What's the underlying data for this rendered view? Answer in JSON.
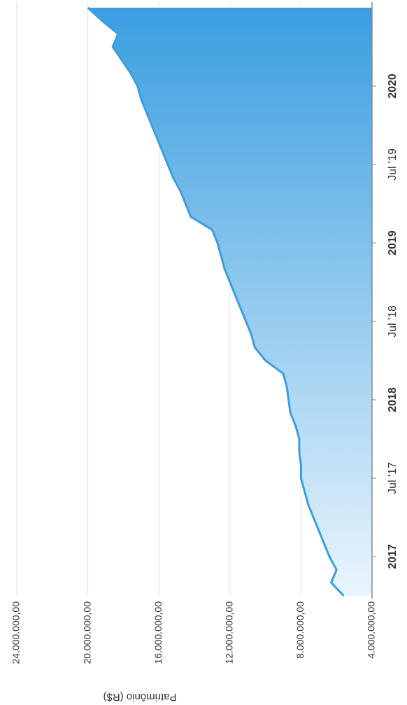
{
  "chart_data": {
    "type": "area",
    "y_label": "Patrimônio (R$)",
    "x": [
      "2016-10",
      "2016-11",
      "2016-12",
      "2017-01",
      "2017-02",
      "2017-03",
      "2017-04",
      "2017-05",
      "2017-06",
      "2017-07",
      "2017-08",
      "2017-09",
      "2017-10",
      "2017-11",
      "2017-12",
      "2018-01",
      "2018-02",
      "2018-03",
      "2018-04",
      "2018-05",
      "2018-06",
      "2018-07",
      "2018-08",
      "2018-09",
      "2018-10",
      "2018-11",
      "2018-12",
      "2019-01",
      "2019-02",
      "2019-03",
      "2019-04",
      "2019-05",
      "2019-06",
      "2019-07",
      "2019-08",
      "2019-09",
      "2019-10",
      "2019-11",
      "2019-12",
      "2020-01",
      "2020-02",
      "2020-03",
      "2020-04",
      "2020-05",
      "2020-06",
      "2020-07"
    ],
    "values": [
      5600000,
      6300000,
      6000000,
      6400000,
      6700000,
      7000000,
      7300000,
      7600000,
      7800000,
      8000000,
      8000000,
      8100000,
      8100000,
      8300000,
      8600000,
      8700000,
      8800000,
      9000000,
      10000000,
      10600000,
      10800000,
      11100000,
      11400000,
      11700000,
      12000000,
      12300000,
      12500000,
      12700000,
      13000000,
      14200000,
      14500000,
      14800000,
      15200000,
      15500000,
      15800000,
      16100000,
      16400000,
      16700000,
      17000000,
      17200000,
      17600000,
      18100000,
      18600000,
      18300000,
      19200000,
      20000000
    ],
    "color": "#3a9ee0",
    "xlim": [
      "2016-10",
      "2020-07"
    ],
    "xticks": [
      {
        "value": "2017-01",
        "label": "2017"
      },
      {
        "value": "2017-07",
        "label": "Jul '17"
      },
      {
        "value": "2018-01",
        "label": "2018"
      },
      {
        "value": "2018-07",
        "label": "Jul '18"
      },
      {
        "value": "2019-01",
        "label": "2019"
      },
      {
        "value": "2019-07",
        "label": "Jul '19"
      },
      {
        "value": "2020-01",
        "label": "2020"
      }
    ],
    "ylim": [
      4000000,
      24000000
    ],
    "yticks": [
      {
        "value": 4000000,
        "label": "4.000.000,00"
      },
      {
        "value": 8000000,
        "label": "8.000.000,00"
      },
      {
        "value": 12000000,
        "label": "12.000.000,00"
      },
      {
        "value": 16000000,
        "label": "16.000.000,00"
      },
      {
        "value": 20000000,
        "label": "20.000.000,00"
      },
      {
        "value": 24000000,
        "label": "24.000.000,00"
      }
    ],
    "grid": true
  }
}
